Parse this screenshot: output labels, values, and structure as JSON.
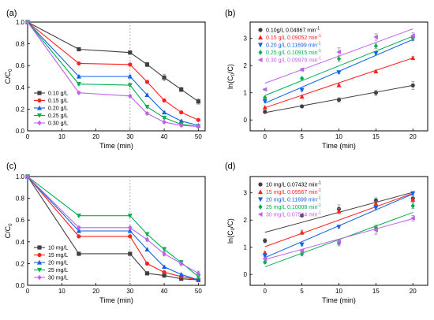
{
  "chart_data": [
    {
      "panel": "(a)",
      "type": "line",
      "xlabel": "Time (min)",
      "ylabel": "C/C0",
      "xlim": [
        0,
        52
      ],
      "ylim": [
        0,
        1.0
      ],
      "xticks": [
        0,
        10,
        20,
        30,
        40,
        50
      ],
      "yticks": [
        0,
        0.2,
        0.4,
        0.6,
        0.8,
        1.0
      ],
      "dashed_vline_x": 30,
      "legend_position": "lower-left",
      "x": [
        0,
        15,
        30,
        35,
        40,
        45,
        50
      ],
      "series": [
        {
          "name": "0.10 g/L",
          "color": "#404040",
          "marker": "square",
          "values": [
            1.0,
            0.75,
            0.72,
            0.61,
            0.49,
            0.38,
            0.27
          ],
          "err": [
            0,
            0.015,
            0.015,
            0.02,
            0.03,
            0.02,
            0.025
          ]
        },
        {
          "name": "0.15 g/L",
          "color": "#ff2020",
          "marker": "circle",
          "values": [
            1.0,
            0.62,
            0.61,
            0.45,
            0.28,
            0.17,
            0.1
          ],
          "err": [
            0,
            0.01,
            0.01,
            0.015,
            0.01,
            0.01,
            0.01
          ]
        },
        {
          "name": "0.20 g/L",
          "color": "#1060e8",
          "marker": "triangle-up",
          "values": [
            1.0,
            0.5,
            0.5,
            0.33,
            0.17,
            0.09,
            0.05
          ],
          "err": [
            0,
            0.01,
            0.01,
            0.01,
            0.01,
            0.01,
            0.01
          ]
        },
        {
          "name": "0.25 g/L",
          "color": "#00b050",
          "marker": "triangle-down",
          "values": [
            1.0,
            0.43,
            0.42,
            0.22,
            0.12,
            0.06,
            0.04
          ],
          "err": [
            0,
            0.01,
            0.01,
            0.01,
            0.01,
            0.01,
            0.01
          ]
        },
        {
          "name": "0.30 g/L",
          "color": "#c060f0",
          "marker": "diamond",
          "values": [
            1.0,
            0.35,
            0.32,
            0.16,
            0.08,
            0.05,
            0.04
          ],
          "err": [
            0,
            0.01,
            0.01,
            0.01,
            0.01,
            0.01,
            0.01
          ]
        }
      ]
    },
    {
      "panel": "(b)",
      "type": "scatter",
      "xlabel": "Time (min)",
      "ylabel": "ln(C0/C)",
      "xlim": [
        -2,
        22
      ],
      "ylim": [
        -0.4,
        3.6
      ],
      "xticks": [
        0,
        5,
        10,
        15,
        20
      ],
      "yticks": [
        0,
        1,
        2,
        3
      ],
      "legend_position": "top-left",
      "x": [
        0,
        5,
        10,
        15,
        20
      ],
      "series": [
        {
          "name": "0.10g/L 0.04867 min⁻¹",
          "color": "#404040",
          "marker": "circle",
          "values": [
            0.3,
            0.5,
            0.74,
            1.0,
            1.27
          ],
          "err": [
            0.03,
            0.04,
            0.08,
            0.1,
            0.15
          ],
          "fit": [
            0.27,
            1.27
          ]
        },
        {
          "name": "0.15 g/L 0.09052 min⁻¹",
          "color": "#ff2020",
          "marker": "triangle-up",
          "values": [
            0.46,
            0.86,
            1.28,
            1.79,
            2.28
          ],
          "err": [
            0.02,
            0.03,
            0.03,
            0.04,
            0.05
          ],
          "fit": [
            0.45,
            2.28
          ]
        },
        {
          "name": "0.20 g/L 0.11699 min⁻¹",
          "color": "#1060e8",
          "marker": "triangle-down",
          "values": [
            0.69,
            1.1,
            1.75,
            2.45,
            2.98
          ],
          "err": [
            0.02,
            0.03,
            0.05,
            0.06,
            0.07
          ],
          "fit": [
            0.62,
            2.96
          ]
        },
        {
          "name": "0.25 g/L 0.10915 min⁻¹",
          "color": "#00b050",
          "marker": "diamond",
          "values": [
            0.82,
            1.53,
            2.25,
            2.72,
            3.02
          ],
          "err": [
            0.03,
            0.04,
            0.1,
            0.1,
            0.08
          ],
          "fit": [
            0.9,
            3.08
          ]
        },
        {
          "name": "0.30 g/L 0.09979 min⁻¹",
          "color": "#c060f0",
          "marker": "triangle-left",
          "values": [
            1.12,
            1.85,
            2.5,
            3.05,
            3.1
          ],
          "err": [
            0.03,
            0.05,
            0.15,
            0.12,
            0.1
          ],
          "fit": [
            1.35,
            3.35
          ]
        }
      ]
    },
    {
      "panel": "(c)",
      "type": "line",
      "xlabel": "Time (min)",
      "ylabel": "C/C0",
      "xlim": [
        0,
        52
      ],
      "ylim": [
        0,
        1.0
      ],
      "xticks": [
        0,
        10,
        20,
        30,
        40,
        50
      ],
      "yticks": [
        0,
        0.2,
        0.4,
        0.6,
        0.8,
        1.0
      ],
      "dashed_vline_x": 30,
      "legend_position": "lower-left",
      "x": [
        0,
        15,
        30,
        35,
        40,
        45,
        50
      ],
      "series": [
        {
          "name": "10 mg/L",
          "color": "#404040",
          "marker": "square",
          "values": [
            1.0,
            0.29,
            0.29,
            0.11,
            0.09,
            0.06,
            0.05
          ],
          "err": [
            0,
            0.01,
            0.01,
            0.01,
            0.01,
            0.01,
            0.01
          ]
        },
        {
          "name": "15 mg/L",
          "color": "#ff2020",
          "marker": "circle",
          "values": [
            1.0,
            0.45,
            0.45,
            0.2,
            0.12,
            0.08,
            0.05
          ],
          "err": [
            0,
            0.01,
            0.01,
            0.01,
            0.01,
            0.01,
            0.01
          ]
        },
        {
          "name": "20 mg/L",
          "color": "#1060e8",
          "marker": "triangle-up",
          "values": [
            1.0,
            0.5,
            0.5,
            0.33,
            0.17,
            0.1,
            0.05
          ],
          "err": [
            0,
            0.01,
            0.01,
            0.01,
            0.01,
            0.01,
            0.01
          ]
        },
        {
          "name": "25 mg/L",
          "color": "#00b050",
          "marker": "triangle-down",
          "values": [
            1.0,
            0.64,
            0.64,
            0.47,
            0.33,
            0.21,
            0.08
          ],
          "err": [
            0,
            0.01,
            0.01,
            0.015,
            0.02,
            0.02,
            0.02
          ]
        },
        {
          "name": "30 mg/L",
          "color": "#c060f0",
          "marker": "diamond",
          "values": [
            1.0,
            0.53,
            0.53,
            0.42,
            0.29,
            0.2,
            0.11
          ],
          "err": [
            0,
            0.01,
            0.01,
            0.015,
            0.02,
            0.02,
            0.02
          ]
        }
      ]
    },
    {
      "panel": "(d)",
      "type": "scatter",
      "xlabel": "Time (min)",
      "ylabel": "ln(C0/C)",
      "xlim": [
        -2,
        22
      ],
      "ylim": [
        -0.4,
        3.6
      ],
      "xticks": [
        0,
        5,
        10,
        15,
        20
      ],
      "yticks": [
        0,
        1,
        2,
        3
      ],
      "legend_position": "top-left",
      "x": [
        0,
        5,
        10,
        15,
        20
      ],
      "series": [
        {
          "name": "10 mg/L 0.07432 min⁻¹",
          "color": "#404040",
          "marker": "circle",
          "values": [
            1.24,
            2.17,
            2.41,
            2.72,
            2.8
          ],
          "err": [
            0.08,
            0.05,
            0.15,
            0.1,
            0.1
          ],
          "fit": [
            1.55,
            3.02
          ]
        },
        {
          "name": "15 mg/L 0.09567 min⁻¹",
          "color": "#ff2020",
          "marker": "triangle-up",
          "values": [
            0.8,
            1.55,
            2.33,
            2.6,
            2.75
          ],
          "err": [
            0.03,
            0.08,
            0.1,
            0.1,
            0.1
          ],
          "fit": [
            1.02,
            2.98
          ]
        },
        {
          "name": "20 mg/L 0.11699 min⁻¹",
          "color": "#1060e8",
          "marker": "triangle-down",
          "values": [
            0.69,
            1.1,
            1.75,
            2.45,
            2.98
          ],
          "err": [
            0.03,
            0.05,
            0.05,
            0.06,
            0.07
          ],
          "fit": [
            0.62,
            2.96
          ]
        },
        {
          "name": "25 mg/L 0.10008 min⁻¹",
          "color": "#00b050",
          "marker": "diamond",
          "values": [
            0.45,
            0.76,
            1.15,
            1.72,
            2.52
          ],
          "err": [
            0.05,
            0.08,
            0.1,
            0.1,
            0.1
          ],
          "fit": [
            0.28,
            2.28
          ]
        },
        {
          "name": "30 mg/L 0.07544 min⁻¹",
          "color": "#c060f0",
          "marker": "triangle-left",
          "values": [
            0.58,
            0.86,
            1.2,
            1.63,
            2.07
          ],
          "err": [
            0.03,
            0.05,
            0.1,
            0.15,
            0.1
          ],
          "fit": [
            0.55,
            2.05
          ]
        }
      ]
    }
  ]
}
